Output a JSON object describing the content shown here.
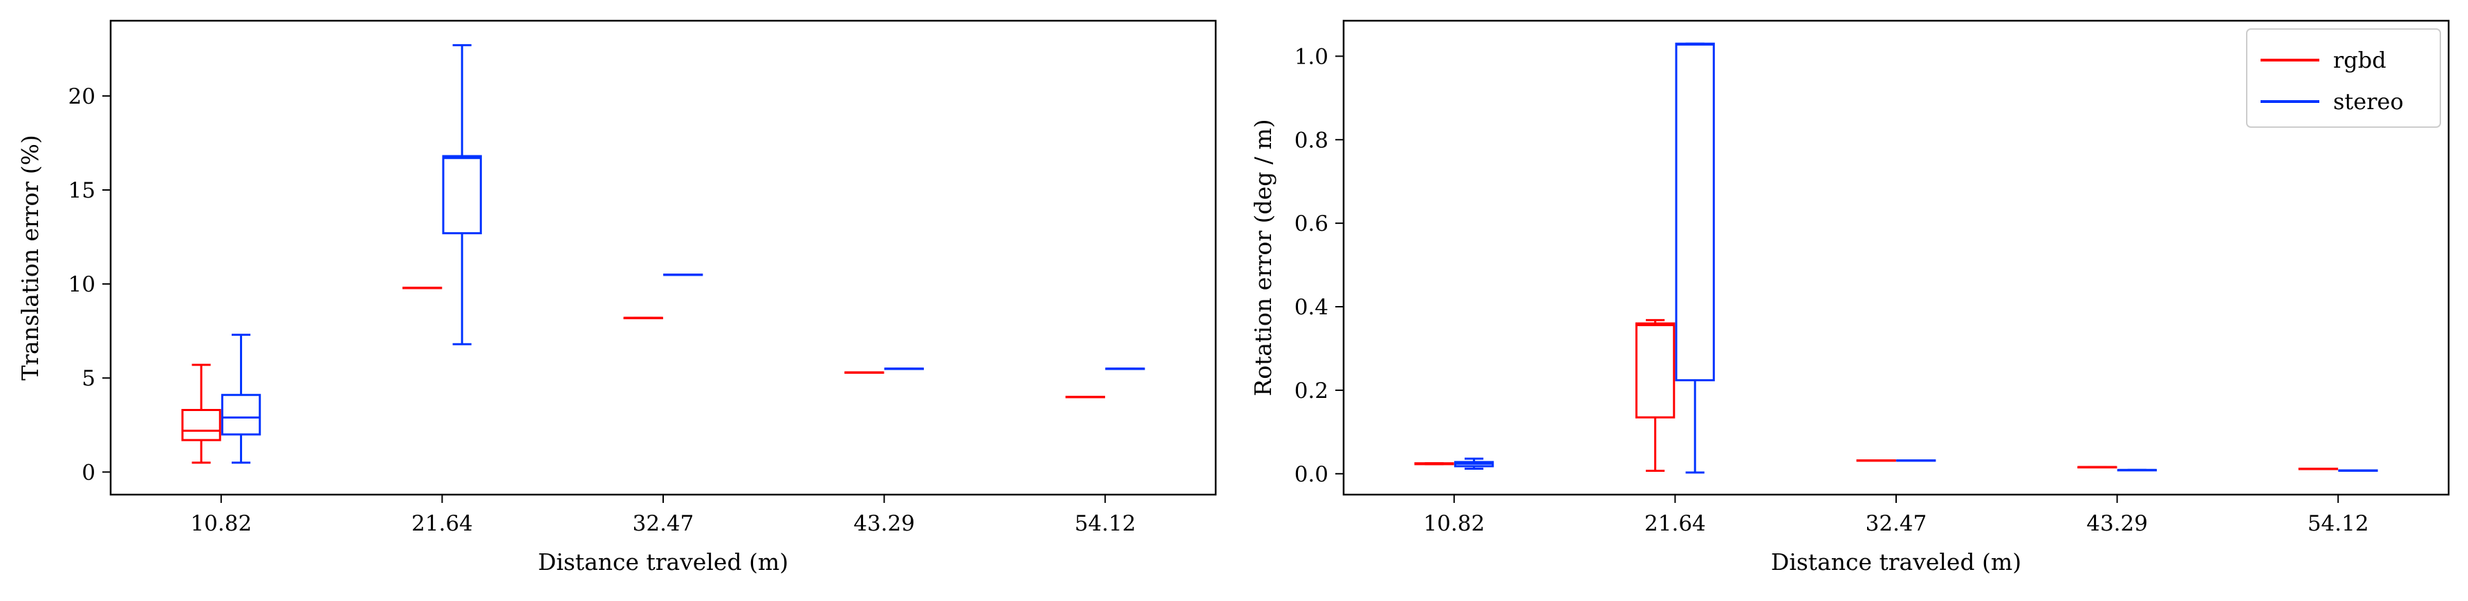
{
  "colors": {
    "rgbd": "#ff0000",
    "stereo": "#0033ff",
    "axis": "#000000"
  },
  "chart_data": [
    {
      "type": "box",
      "xlabel": "Distance traveled (m)",
      "ylabel": "Translation error (%)",
      "categories": [
        "10.82",
        "21.64",
        "32.47",
        "43.29",
        "54.12"
      ],
      "ylim": [
        -1.2,
        24.0
      ],
      "yticks": [
        0,
        5,
        10,
        15,
        20
      ],
      "grid": false,
      "legend": null,
      "series": [
        {
          "name": "rgbd",
          "boxes": [
            {
              "min": 0.5,
              "q1": 1.7,
              "median": 2.2,
              "q3": 3.3,
              "max": 5.7
            },
            {
              "min": 9.8,
              "q1": 9.8,
              "median": 9.8,
              "q3": 9.8,
              "max": 9.8
            },
            {
              "min": 8.2,
              "q1": 8.2,
              "median": 8.2,
              "q3": 8.2,
              "max": 8.2
            },
            {
              "min": 5.3,
              "q1": 5.3,
              "median": 5.3,
              "q3": 5.3,
              "max": 5.3
            },
            {
              "min": 4.0,
              "q1": 4.0,
              "median": 4.0,
              "q3": 4.0,
              "max": 4.0
            }
          ]
        },
        {
          "name": "stereo",
          "boxes": [
            {
              "min": 0.5,
              "q1": 2.0,
              "median": 2.9,
              "q3": 4.1,
              "max": 7.3
            },
            {
              "min": 6.8,
              "q1": 12.7,
              "median": 16.7,
              "q3": 16.8,
              "max": 22.7
            },
            {
              "min": 10.5,
              "q1": 10.5,
              "median": 10.5,
              "q3": 10.5,
              "max": 10.5
            },
            {
              "min": 5.5,
              "q1": 5.5,
              "median": 5.5,
              "q3": 5.5,
              "max": 5.5
            },
            {
              "min": 5.5,
              "q1": 5.5,
              "median": 5.5,
              "q3": 5.5,
              "max": 5.5
            }
          ]
        }
      ]
    },
    {
      "type": "box",
      "xlabel": "Distance traveled (m)",
      "ylabel": "Rotation error (deg / m)",
      "categories": [
        "10.82",
        "21.64",
        "32.47",
        "43.29",
        "54.12"
      ],
      "ylim": [
        -0.05,
        1.085
      ],
      "yticks": [
        0.0,
        0.2,
        0.4,
        0.6,
        0.8,
        1.0
      ],
      "grid": false,
      "legend": {
        "placement": "top-right",
        "entries": [
          "rgbd",
          "stereo"
        ]
      },
      "series": [
        {
          "name": "rgbd",
          "boxes": [
            {
              "min": 0.023,
              "q1": 0.023,
              "median": 0.024,
              "q3": 0.025,
              "max": 0.025
            },
            {
              "min": 0.007,
              "q1": 0.135,
              "median": 0.356,
              "q3": 0.36,
              "max": 0.368
            },
            {
              "min": 0.032,
              "q1": 0.032,
              "median": 0.032,
              "q3": 0.032,
              "max": 0.032
            },
            {
              "min": 0.016,
              "q1": 0.016,
              "median": 0.016,
              "q3": 0.016,
              "max": 0.016
            },
            {
              "min": 0.012,
              "q1": 0.012,
              "median": 0.012,
              "q3": 0.012,
              "max": 0.012
            }
          ]
        },
        {
          "name": "stereo",
          "boxes": [
            {
              "min": 0.012,
              "q1": 0.018,
              "median": 0.024,
              "q3": 0.028,
              "max": 0.036
            },
            {
              "min": 0.003,
              "q1": 0.224,
              "median": 1.028,
              "q3": 1.03,
              "max": 1.03
            },
            {
              "min": 0.032,
              "q1": 0.032,
              "median": 0.032,
              "q3": 0.032,
              "max": 0.032
            },
            {
              "min": 0.009,
              "q1": 0.009,
              "median": 0.009,
              "q3": 0.009,
              "max": 0.009
            },
            {
              "min": 0.008,
              "q1": 0.008,
              "median": 0.008,
              "q3": 0.008,
              "max": 0.008
            }
          ]
        }
      ]
    }
  ]
}
